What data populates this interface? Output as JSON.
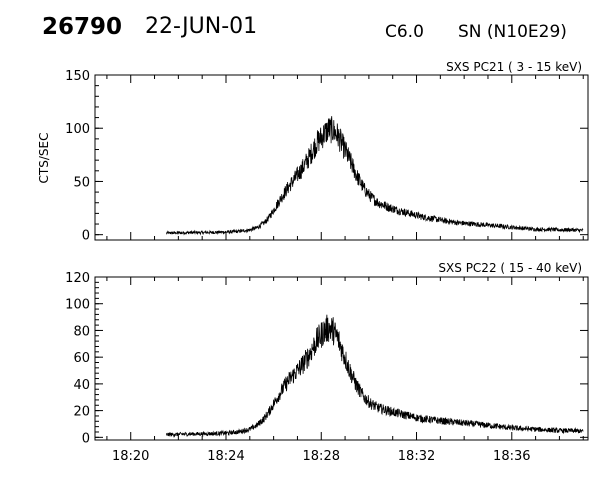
{
  "header": {
    "event_id": "26790",
    "date": "22-JUN-01",
    "flare_class": "C6.0",
    "location": "SN (N10E29)"
  },
  "chart_data": [
    {
      "type": "line",
      "title": "SXS PC21 ( 3 - 15 keV)",
      "xlabel": "",
      "ylabel": "CTS/SEC",
      "x_unit": "minutes of day (UT)",
      "xlim": [
        1098.5,
        1119.2
      ],
      "ylim": [
        -5,
        150
      ],
      "yticks": [
        0,
        50,
        100,
        150
      ],
      "xticks": [
        "18:20",
        "18:24",
        "18:28",
        "18:32",
        "18:36"
      ],
      "xtick_values": [
        1100,
        1104,
        1108,
        1112,
        1116
      ],
      "grid": false,
      "series": [
        {
          "points": [
            [
              1101.5,
              1.5
            ],
            [
              1102.0,
              1.7
            ],
            [
              1102.5,
              2.0
            ],
            [
              1103.0,
              2.0
            ],
            [
              1103.5,
              2.2
            ],
            [
              1104.0,
              2.5
            ],
            [
              1104.5,
              3.0
            ],
            [
              1105.0,
              4.5
            ],
            [
              1105.3,
              6.5
            ],
            [
              1105.6,
              11
            ],
            [
              1105.8,
              16
            ],
            [
              1106.0,
              23
            ],
            [
              1106.3,
              34
            ],
            [
              1106.6,
              44
            ],
            [
              1106.9,
              53
            ],
            [
              1107.2,
              62
            ],
            [
              1107.5,
              73
            ],
            [
              1107.8,
              86
            ],
            [
              1108.1,
              94
            ],
            [
              1108.3,
              99
            ],
            [
              1108.5,
              98
            ],
            [
              1108.7,
              93
            ],
            [
              1108.9,
              84
            ],
            [
              1109.2,
              70
            ],
            [
              1109.5,
              55
            ],
            [
              1109.8,
              43
            ],
            [
              1110.1,
              35
            ],
            [
              1110.4,
              30
            ],
            [
              1110.8,
              26
            ],
            [
              1111.2,
              23
            ],
            [
              1111.7,
              20
            ],
            [
              1112.2,
              17
            ],
            [
              1112.7,
              15
            ],
            [
              1113.2,
              13
            ],
            [
              1113.8,
              11
            ],
            [
              1114.4,
              10
            ],
            [
              1115.0,
              9
            ],
            [
              1115.5,
              8
            ],
            [
              1116.0,
              7
            ],
            [
              1116.5,
              6
            ],
            [
              1117.0,
              5
            ],
            [
              1117.5,
              5
            ],
            [
              1118.0,
              4.5
            ],
            [
              1118.5,
              4.5
            ],
            [
              1119.0,
              4
            ]
          ]
        }
      ]
    },
    {
      "type": "line",
      "title": "SXS PC22 ( 15 - 40 keV)",
      "xlabel": "",
      "ylabel": "",
      "x_unit": "minutes of day (UT)",
      "xlim": [
        1098.5,
        1119.2
      ],
      "ylim": [
        -2,
        120
      ],
      "yticks": [
        0,
        20,
        40,
        60,
        80,
        100,
        120
      ],
      "xticks": [
        "18:20",
        "18:24",
        "18:28",
        "18:32",
        "18:36"
      ],
      "xtick_values": [
        1100,
        1104,
        1108,
        1112,
        1116
      ],
      "grid": false,
      "series": [
        {
          "points": [
            [
              1101.5,
              2.0
            ],
            [
              1102.0,
              2.2
            ],
            [
              1102.5,
              2.5
            ],
            [
              1103.0,
              2.6
            ],
            [
              1103.5,
              2.8
            ],
            [
              1104.0,
              3.2
            ],
            [
              1104.5,
              4.0
            ],
            [
              1105.0,
              6.0
            ],
            [
              1105.3,
              9
            ],
            [
              1105.6,
              14
            ],
            [
              1105.8,
              19
            ],
            [
              1106.0,
              25
            ],
            [
              1106.3,
              34
            ],
            [
              1106.6,
              42
            ],
            [
              1106.9,
              48
            ],
            [
              1107.2,
              54
            ],
            [
              1107.5,
              62
            ],
            [
              1107.8,
              72
            ],
            [
              1108.1,
              79
            ],
            [
              1108.3,
              82
            ],
            [
              1108.5,
              80
            ],
            [
              1108.7,
              74
            ],
            [
              1108.9,
              64
            ],
            [
              1109.2,
              50
            ],
            [
              1109.5,
              38
            ],
            [
              1109.8,
              30
            ],
            [
              1110.1,
              25
            ],
            [
              1110.4,
              22
            ],
            [
              1110.8,
              20
            ],
            [
              1111.2,
              18
            ],
            [
              1111.7,
              16
            ],
            [
              1112.2,
              14
            ],
            [
              1112.7,
              13
            ],
            [
              1113.2,
              12
            ],
            [
              1113.8,
              11
            ],
            [
              1114.4,
              10
            ],
            [
              1115.0,
              9
            ],
            [
              1115.5,
              8
            ],
            [
              1116.0,
              7
            ],
            [
              1116.5,
              6.5
            ],
            [
              1117.0,
              6
            ],
            [
              1117.5,
              5.5
            ],
            [
              1118.0,
              5
            ],
            [
              1118.5,
              5
            ],
            [
              1119.0,
              4.5
            ]
          ]
        }
      ]
    }
  ]
}
